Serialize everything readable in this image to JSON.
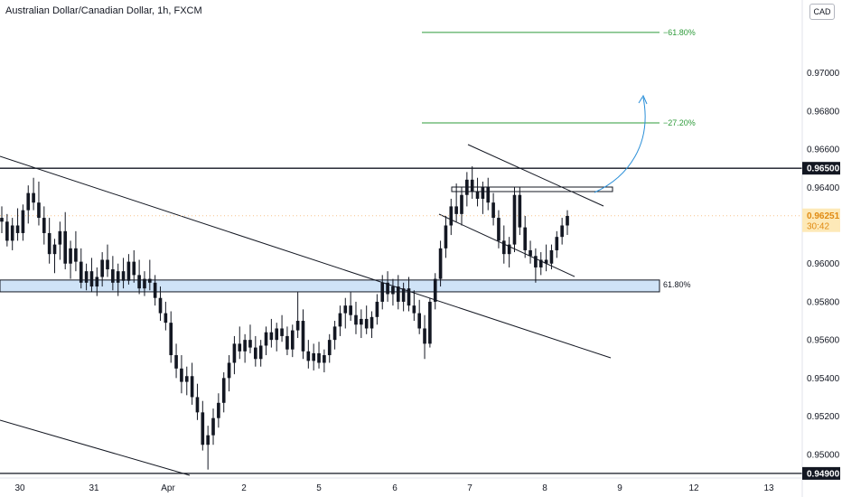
{
  "header": {
    "title": "Australian Dollar/Canadian Dollar, 1h, FXCM",
    "currency": "CAD"
  },
  "chart_data": {
    "type": "candlestick",
    "ylim": [
      0.9489,
      0.9724
    ],
    "y_ticks": [
      "0.97000",
      "0.96800",
      "0.96600",
      "0.96400",
      "0.96000",
      "0.95800",
      "0.95600",
      "0.95400",
      "0.95200",
      "0.95000"
    ],
    "x_ticks": [
      "30",
      "31",
      "Apr",
      "2",
      "5",
      "6",
      "7",
      "8",
      "9",
      "12",
      "13"
    ],
    "grid": false,
    "resistance": {
      "value": 0.965,
      "label": "0.96500"
    },
    "support_zone": {
      "from": 0.95852,
      "to": 0.95914,
      "label": "61.80%"
    },
    "fib_extensions": [
      {
        "label": "−61.80%",
        "value": 0.97212
      },
      {
        "label": "−27.20%",
        "value": 0.96738
      }
    ],
    "current_price": {
      "value": 0.96251,
      "label": "0.96251",
      "countdown": "30:42"
    },
    "bottom_level": {
      "value": 0.949,
      "label": "0.94900"
    },
    "up_color": "#089981",
    "down_color": "#f23645",
    "candles": [
      [
        0.9624,
        0.963,
        0.9616,
        0.9622
      ],
      [
        0.9622,
        0.9626,
        0.9609,
        0.9612
      ],
      [
        0.9612,
        0.9624,
        0.9607,
        0.962
      ],
      [
        0.962,
        0.9629,
        0.9612,
        0.9616
      ],
      [
        0.9616,
        0.9631,
        0.9612,
        0.9628
      ],
      [
        0.9628,
        0.9641,
        0.9621,
        0.9637
      ],
      [
        0.9637,
        0.9645,
        0.9628,
        0.9632
      ],
      [
        0.9632,
        0.9643,
        0.962,
        0.9624
      ],
      [
        0.9624,
        0.963,
        0.961,
        0.9616
      ],
      [
        0.9616,
        0.9624,
        0.96,
        0.9605
      ],
      [
        0.9605,
        0.9613,
        0.9595,
        0.961
      ],
      [
        0.961,
        0.9622,
        0.9602,
        0.9617
      ],
      [
        0.9617,
        0.9627,
        0.9597,
        0.96
      ],
      [
        0.96,
        0.9612,
        0.9592,
        0.9608
      ],
      [
        0.9608,
        0.9617,
        0.9596,
        0.9601
      ],
      [
        0.9601,
        0.9608,
        0.9587,
        0.959
      ],
      [
        0.959,
        0.96,
        0.9586,
        0.9596
      ],
      [
        0.9596,
        0.9603,
        0.9585,
        0.9588
      ],
      [
        0.9588,
        0.9598,
        0.9583,
        0.9593
      ],
      [
        0.9593,
        0.9606,
        0.9588,
        0.9602
      ],
      [
        0.9602,
        0.961,
        0.9593,
        0.9597
      ],
      [
        0.9597,
        0.9604,
        0.9586,
        0.959
      ],
      [
        0.959,
        0.96,
        0.9583,
        0.9596
      ],
      [
        0.9596,
        0.9603,
        0.9587,
        0.9591
      ],
      [
        0.9591,
        0.9605,
        0.9589,
        0.9601
      ],
      [
        0.9601,
        0.9607,
        0.959,
        0.9594
      ],
      [
        0.9594,
        0.9602,
        0.9584,
        0.9587
      ],
      [
        0.9587,
        0.9596,
        0.9583,
        0.9592
      ],
      [
        0.9592,
        0.9602,
        0.9586,
        0.959
      ],
      [
        0.959,
        0.9594,
        0.9578,
        0.9582
      ],
      [
        0.9582,
        0.9588,
        0.957,
        0.9574
      ],
      [
        0.9574,
        0.958,
        0.9565,
        0.9569
      ],
      [
        0.9569,
        0.9575,
        0.9548,
        0.9552
      ],
      [
        0.9552,
        0.9558,
        0.954,
        0.9545
      ],
      [
        0.9545,
        0.9552,
        0.9532,
        0.9538
      ],
      [
        0.9538,
        0.9546,
        0.9531,
        0.9541
      ],
      [
        0.9541,
        0.9548,
        0.9526,
        0.953
      ],
      [
        0.953,
        0.9537,
        0.9518,
        0.9522
      ],
      [
        0.9522,
        0.9528,
        0.9502,
        0.9505
      ],
      [
        0.9505,
        0.9515,
        0.9492,
        0.951
      ],
      [
        0.951,
        0.9524,
        0.9505,
        0.9519
      ],
      [
        0.9519,
        0.9532,
        0.9514,
        0.9527
      ],
      [
        0.9527,
        0.9543,
        0.9522,
        0.954
      ],
      [
        0.954,
        0.9552,
        0.9533,
        0.9548
      ],
      [
        0.9548,
        0.9562,
        0.9542,
        0.9558
      ],
      [
        0.9558,
        0.9567,
        0.955,
        0.9554
      ],
      [
        0.9554,
        0.9563,
        0.9548,
        0.956
      ],
      [
        0.956,
        0.9568,
        0.9553,
        0.9556
      ],
      [
        0.9556,
        0.9562,
        0.9546,
        0.955
      ],
      [
        0.955,
        0.956,
        0.9546,
        0.9557
      ],
      [
        0.9557,
        0.9567,
        0.9552,
        0.9564
      ],
      [
        0.9564,
        0.9571,
        0.9556,
        0.956
      ],
      [
        0.956,
        0.9569,
        0.9554,
        0.9566
      ],
      [
        0.9566,
        0.9573,
        0.9559,
        0.9562
      ],
      [
        0.9562,
        0.9567,
        0.9552,
        0.9555
      ],
      [
        0.9555,
        0.9568,
        0.9551,
        0.9565
      ],
      [
        0.9565,
        0.9585,
        0.9561,
        0.957
      ],
      [
        0.957,
        0.9576,
        0.955,
        0.9554
      ],
      [
        0.9554,
        0.956,
        0.9545,
        0.9549
      ],
      [
        0.9549,
        0.9558,
        0.9544,
        0.9553
      ],
      [
        0.9553,
        0.9559,
        0.9545,
        0.9548
      ],
      [
        0.9548,
        0.9555,
        0.9543,
        0.9552
      ],
      [
        0.9552,
        0.9563,
        0.9548,
        0.956
      ],
      [
        0.956,
        0.957,
        0.9555,
        0.9567
      ],
      [
        0.9567,
        0.9578,
        0.9562,
        0.9574
      ],
      [
        0.9574,
        0.9582,
        0.9566,
        0.9578
      ],
      [
        0.9578,
        0.9585,
        0.957,
        0.9573
      ],
      [
        0.9573,
        0.958,
        0.9563,
        0.9568
      ],
      [
        0.9568,
        0.9576,
        0.9561,
        0.9571
      ],
      [
        0.9571,
        0.9578,
        0.9563,
        0.9566
      ],
      [
        0.9566,
        0.9575,
        0.9561,
        0.9572
      ],
      [
        0.9572,
        0.9584,
        0.9568,
        0.958
      ],
      [
        0.958,
        0.9594,
        0.9576,
        0.959
      ],
      [
        0.959,
        0.9596,
        0.958,
        0.9584
      ],
      [
        0.9584,
        0.9592,
        0.9578,
        0.9588
      ],
      [
        0.9588,
        0.9594,
        0.9576,
        0.958
      ],
      [
        0.958,
        0.959,
        0.9575,
        0.9587
      ],
      [
        0.9587,
        0.9593,
        0.9575,
        0.9578
      ],
      [
        0.9578,
        0.9586,
        0.957,
        0.9574
      ],
      [
        0.9574,
        0.9581,
        0.9563,
        0.9566
      ],
      [
        0.9566,
        0.9573,
        0.955,
        0.9558
      ],
      [
        0.9558,
        0.9582,
        0.9556,
        0.958
      ],
      [
        0.958,
        0.9595,
        0.9576,
        0.9592
      ],
      [
        0.9592,
        0.9612,
        0.9588,
        0.9608
      ],
      [
        0.9608,
        0.9625,
        0.9603,
        0.962
      ],
      [
        0.962,
        0.9634,
        0.9615,
        0.963
      ],
      [
        0.963,
        0.9642,
        0.9622,
        0.9626
      ],
      [
        0.9626,
        0.964,
        0.962,
        0.9636
      ],
      [
        0.9636,
        0.9648,
        0.963,
        0.9644
      ],
      [
        0.9644,
        0.9651,
        0.9634,
        0.9638
      ],
      [
        0.9638,
        0.9645,
        0.963,
        0.9634
      ],
      [
        0.9634,
        0.9643,
        0.9626,
        0.964
      ],
      [
        0.964,
        0.9645,
        0.9628,
        0.9632
      ],
      [
        0.9632,
        0.9637,
        0.962,
        0.9624
      ],
      [
        0.9624,
        0.9628,
        0.9608,
        0.9612
      ],
      [
        0.9612,
        0.962,
        0.96,
        0.9605
      ],
      [
        0.9605,
        0.9614,
        0.9598,
        0.961
      ],
      [
        0.961,
        0.964,
        0.9606,
        0.9636
      ],
      [
        0.9636,
        0.964,
        0.9615,
        0.9619
      ],
      [
        0.9619,
        0.9625,
        0.9603,
        0.9607
      ],
      [
        0.9607,
        0.9612,
        0.96,
        0.9604
      ],
      [
        0.9604,
        0.9608,
        0.959,
        0.9598
      ],
      [
        0.9598,
        0.9606,
        0.9594,
        0.9602
      ],
      [
        0.9602,
        0.961,
        0.9596,
        0.96
      ],
      [
        0.96,
        0.961,
        0.9597,
        0.9607
      ],
      [
        0.9607,
        0.9617,
        0.9603,
        0.9614
      ],
      [
        0.9614,
        0.9624,
        0.961,
        0.962
      ],
      [
        0.962,
        0.9628,
        0.9615,
        0.9625
      ]
    ]
  }
}
